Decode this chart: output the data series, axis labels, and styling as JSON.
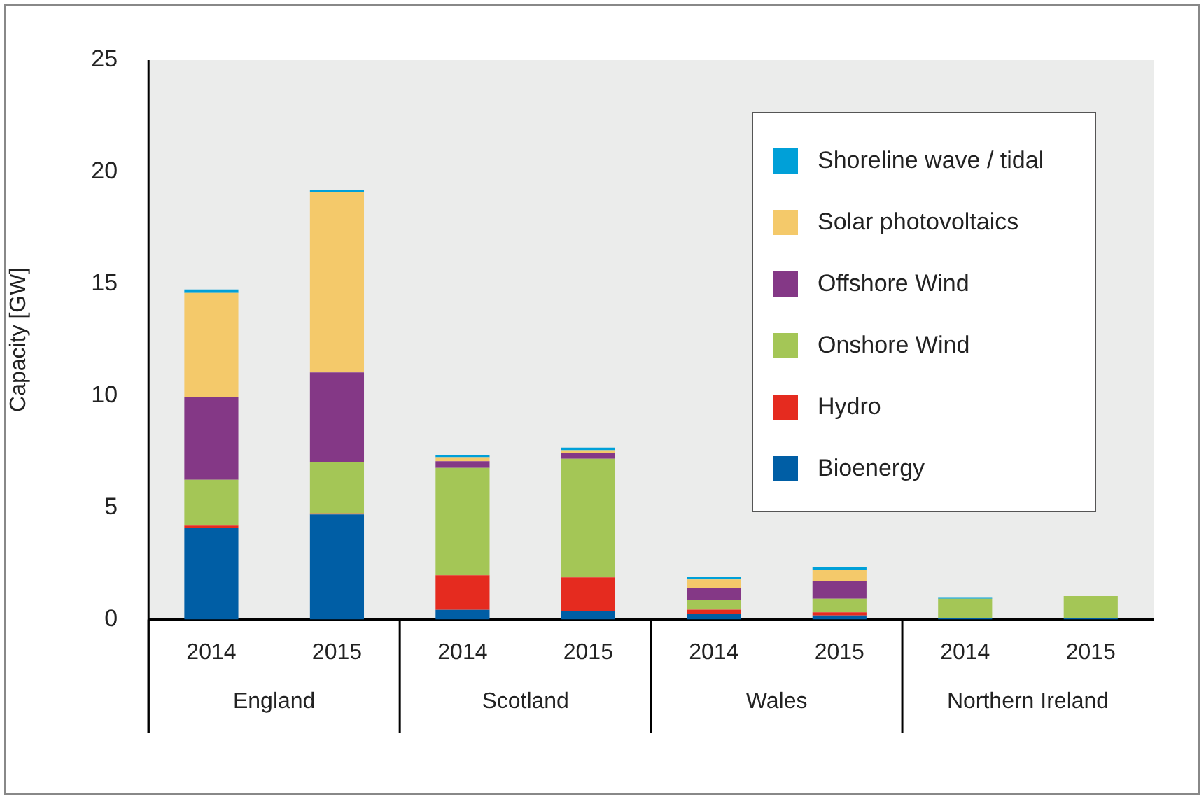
{
  "chart_data": {
    "type": "bar",
    "stacked": true,
    "ylabel": "Capacity [GW]",
    "categories": [
      "2014",
      "2015",
      "2014",
      "2015",
      "2014",
      "2015",
      "2014",
      "2015"
    ],
    "annotations": [
      "England",
      "Scotland",
      "Wales",
      "Northern Ireland"
    ],
    "series": [
      {
        "name": "Bioenergy",
        "color": "#005ea5",
        "values": [
          4.1,
          4.7,
          0.43,
          0.39,
          0.26,
          0.18,
          0.08,
          0.08
        ]
      },
      {
        "name": "Hydro",
        "color": "#e52b1f",
        "values": [
          0.1,
          0.05,
          1.55,
          1.5,
          0.18,
          0.14,
          null,
          null
        ]
      },
      {
        "name": "Onshore Wind",
        "color": "#a4c656",
        "values": [
          2.05,
          2.3,
          4.8,
          5.3,
          0.43,
          0.61,
          0.85,
          0.97
        ]
      },
      {
        "name": "Offshore Wind",
        "color": "#843886",
        "values": [
          3.7,
          4.0,
          0.3,
          0.26,
          0.55,
          0.79,
          null,
          null
        ]
      },
      {
        "name": "Solar photovoltaics",
        "color": "#f4c96a",
        "values": [
          4.65,
          8.05,
          0.18,
          0.12,
          0.37,
          0.49,
          null,
          null
        ]
      },
      {
        "name": "Shoreline wave / tidal",
        "color": "#00a0d8",
        "values": [
          0.15,
          0.1,
          0.08,
          0.12,
          0.12,
          0.12,
          0.07,
          null
        ]
      }
    ],
    "ylim": [
      0,
      25
    ],
    "yticks": [
      0,
      5,
      10,
      15,
      20,
      25
    ],
    "grid": false,
    "legend": "top right"
  }
}
